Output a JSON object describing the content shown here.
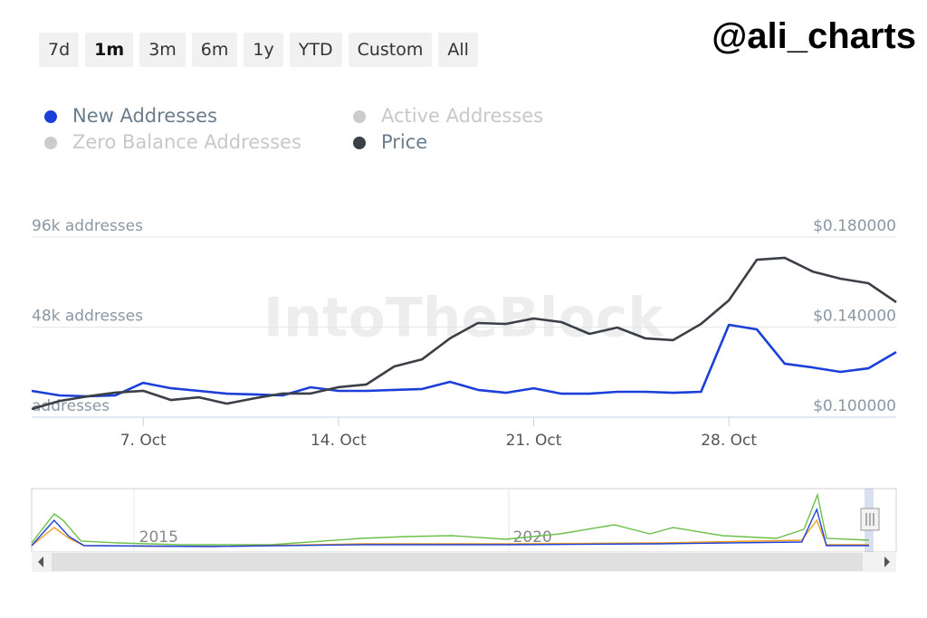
{
  "range_buttons": [
    "7d",
    "1m",
    "3m",
    "6m",
    "1y",
    "YTD",
    "Custom",
    "All"
  ],
  "selected_range": 1,
  "handle": "@ali_charts",
  "chart_data": [
    {
      "type": "line",
      "watermark": "IntoTheBlock",
      "categories": [
        null,
        null,
        null,
        null,
        "7. Oct",
        null,
        null,
        null,
        null,
        null,
        null,
        "14. Oct",
        null,
        null,
        null,
        null,
        null,
        null,
        "21. Oct",
        null,
        null,
        null,
        null,
        null,
        null,
        "28. Oct",
        null,
        null,
        null,
        null,
        null,
        null
      ],
      "series": [
        {
          "name": "New Addresses",
          "color": "#1b3fd8",
          "axis": "y",
          "visible": true,
          "values": [
            14000,
            11600,
            11100,
            11600,
            18300,
            15400,
            14000,
            12500,
            12100,
            11600,
            15900,
            14000,
            14000,
            14500,
            15000,
            18800,
            14500,
            13000,
            15400,
            12500,
            12500,
            13500,
            13500,
            13000,
            13500,
            49200,
            46800,
            28500,
            26500,
            24100,
            26000,
            34700
          ]
        },
        {
          "name": "Active Addresses",
          "color": "#c8c8c8",
          "visible": false
        },
        {
          "name": "Zero Balance Addresses",
          "color": "#c8c8c8",
          "visible": false
        },
        {
          "name": "Price",
          "color": "#3b4046",
          "axis": "y2",
          "visible": true,
          "values": [
            0.1036,
            0.1072,
            0.1092,
            0.1109,
            0.1117,
            0.1076,
            0.1088,
            0.106,
            0.1084,
            0.1105,
            0.1105,
            0.1133,
            0.1145,
            0.1225,
            0.1257,
            0.135,
            0.1418,
            0.1414,
            0.1438,
            0.1422,
            0.137,
            0.1398,
            0.135,
            0.1342,
            0.1414,
            0.1519,
            0.1699,
            0.1708,
            0.1647,
            0.1615,
            0.1595,
            0.1511
          ]
        }
      ],
      "ylim": [
        0,
        96000
      ],
      "yticks": [
        {
          "value": 0,
          "label": "addresses"
        },
        {
          "value": 48000,
          "label": "48k addresses"
        },
        {
          "value": 96000,
          "label": "96k addresses"
        }
      ],
      "y2lim": [
        0.1,
        0.18
      ],
      "y2ticks": [
        {
          "value": 0.1,
          "label": "$0.100000"
        },
        {
          "value": 0.14,
          "label": "$0.140000"
        },
        {
          "value": 0.18,
          "label": "$0.180000"
        }
      ],
      "grid": true
    },
    {
      "type": "line",
      "xlim": [
        2013.6,
        2024.8
      ],
      "xticks": [
        2015,
        2020
      ],
      "ylim": [
        0,
        60
      ],
      "series": [
        {
          "color": "#6cc04a",
          "x": [
            2013.6,
            2013.9,
            2014.02,
            2014.26,
            2014.75,
            2015.59,
            2016.8,
            2018.01,
            2018.61,
            2019.22,
            2019.94,
            2020.67,
            2021.39,
            2021.87,
            2022.18,
            2022.84,
            2023.56,
            2023.93,
            2024.11,
            2024.23,
            2024.8
          ],
          "values": [
            5,
            37,
            30,
            7,
            5,
            3,
            3,
            10,
            12,
            13,
            9,
            15,
            25,
            15,
            22,
            13,
            10,
            20,
            58,
            10,
            8
          ]
        },
        {
          "color": "#f0a020",
          "x": [
            2013.6,
            2013.9,
            2014.1,
            2014.3,
            2016,
            2018,
            2020,
            2022,
            2023.9,
            2024.1,
            2024.23,
            2024.8
          ],
          "values": [
            2,
            22,
            10,
            2,
            1,
            4,
            4,
            5,
            8,
            30,
            3,
            3
          ]
        },
        {
          "color": "#1b3fd8",
          "x": [
            2013.6,
            2013.9,
            2014.1,
            2014.3,
            2016,
            2018,
            2020,
            2022,
            2023.9,
            2024.1,
            2024.23,
            2024.8
          ],
          "values": [
            2,
            30,
            12,
            2,
            1,
            3,
            3,
            4,
            6,
            42,
            2,
            2
          ]
        }
      ]
    }
  ]
}
